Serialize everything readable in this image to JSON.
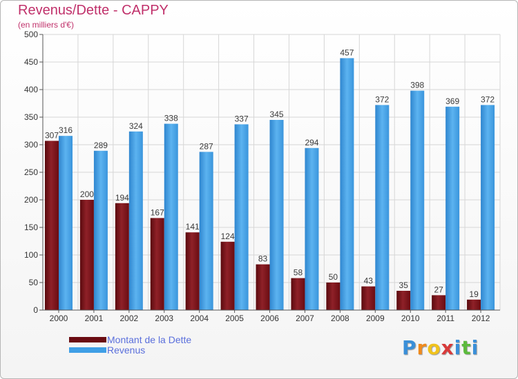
{
  "title": "Revenus/Dette - CAPPY",
  "subtitle": "(en milliers d'€)",
  "logo": {
    "letters": [
      "P",
      "r",
      "o",
      "x",
      "i",
      "t",
      "i"
    ],
    "colors": [
      "#3a8fd8",
      "#f08a1c",
      "#f0c21c",
      "#d83a3a",
      "#3a8fd8",
      "#5cba3c",
      "#3a8fd8"
    ]
  },
  "colors": {
    "dette": "#7a0f15",
    "revenus": "#3f9fe6",
    "label_text": "#3a3a3a",
    "axis_text": "#333333"
  },
  "chart_data": {
    "type": "bar",
    "title": "Revenus/Dette - CAPPY",
    "subtitle": "(en milliers d'€)",
    "categories": [
      "2000",
      "2001",
      "2002",
      "2003",
      "2004",
      "2005",
      "2006",
      "2007",
      "2008",
      "2009",
      "2010",
      "2011",
      "2012"
    ],
    "series": [
      {
        "name": "Montant de la Dette",
        "values": [
          307,
          200,
          194,
          167,
          141,
          124,
          83,
          58,
          50,
          43,
          35,
          27,
          19
        ]
      },
      {
        "name": "Revenus",
        "values": [
          316,
          289,
          324,
          338,
          287,
          337,
          345,
          294,
          457,
          372,
          398,
          369,
          372
        ]
      }
    ],
    "ylim": [
      0,
      500
    ],
    "yticks": [
      0,
      50,
      100,
      150,
      200,
      250,
      300,
      350,
      400,
      450,
      500
    ],
    "grid": true,
    "legend_position": "bottom-left"
  }
}
